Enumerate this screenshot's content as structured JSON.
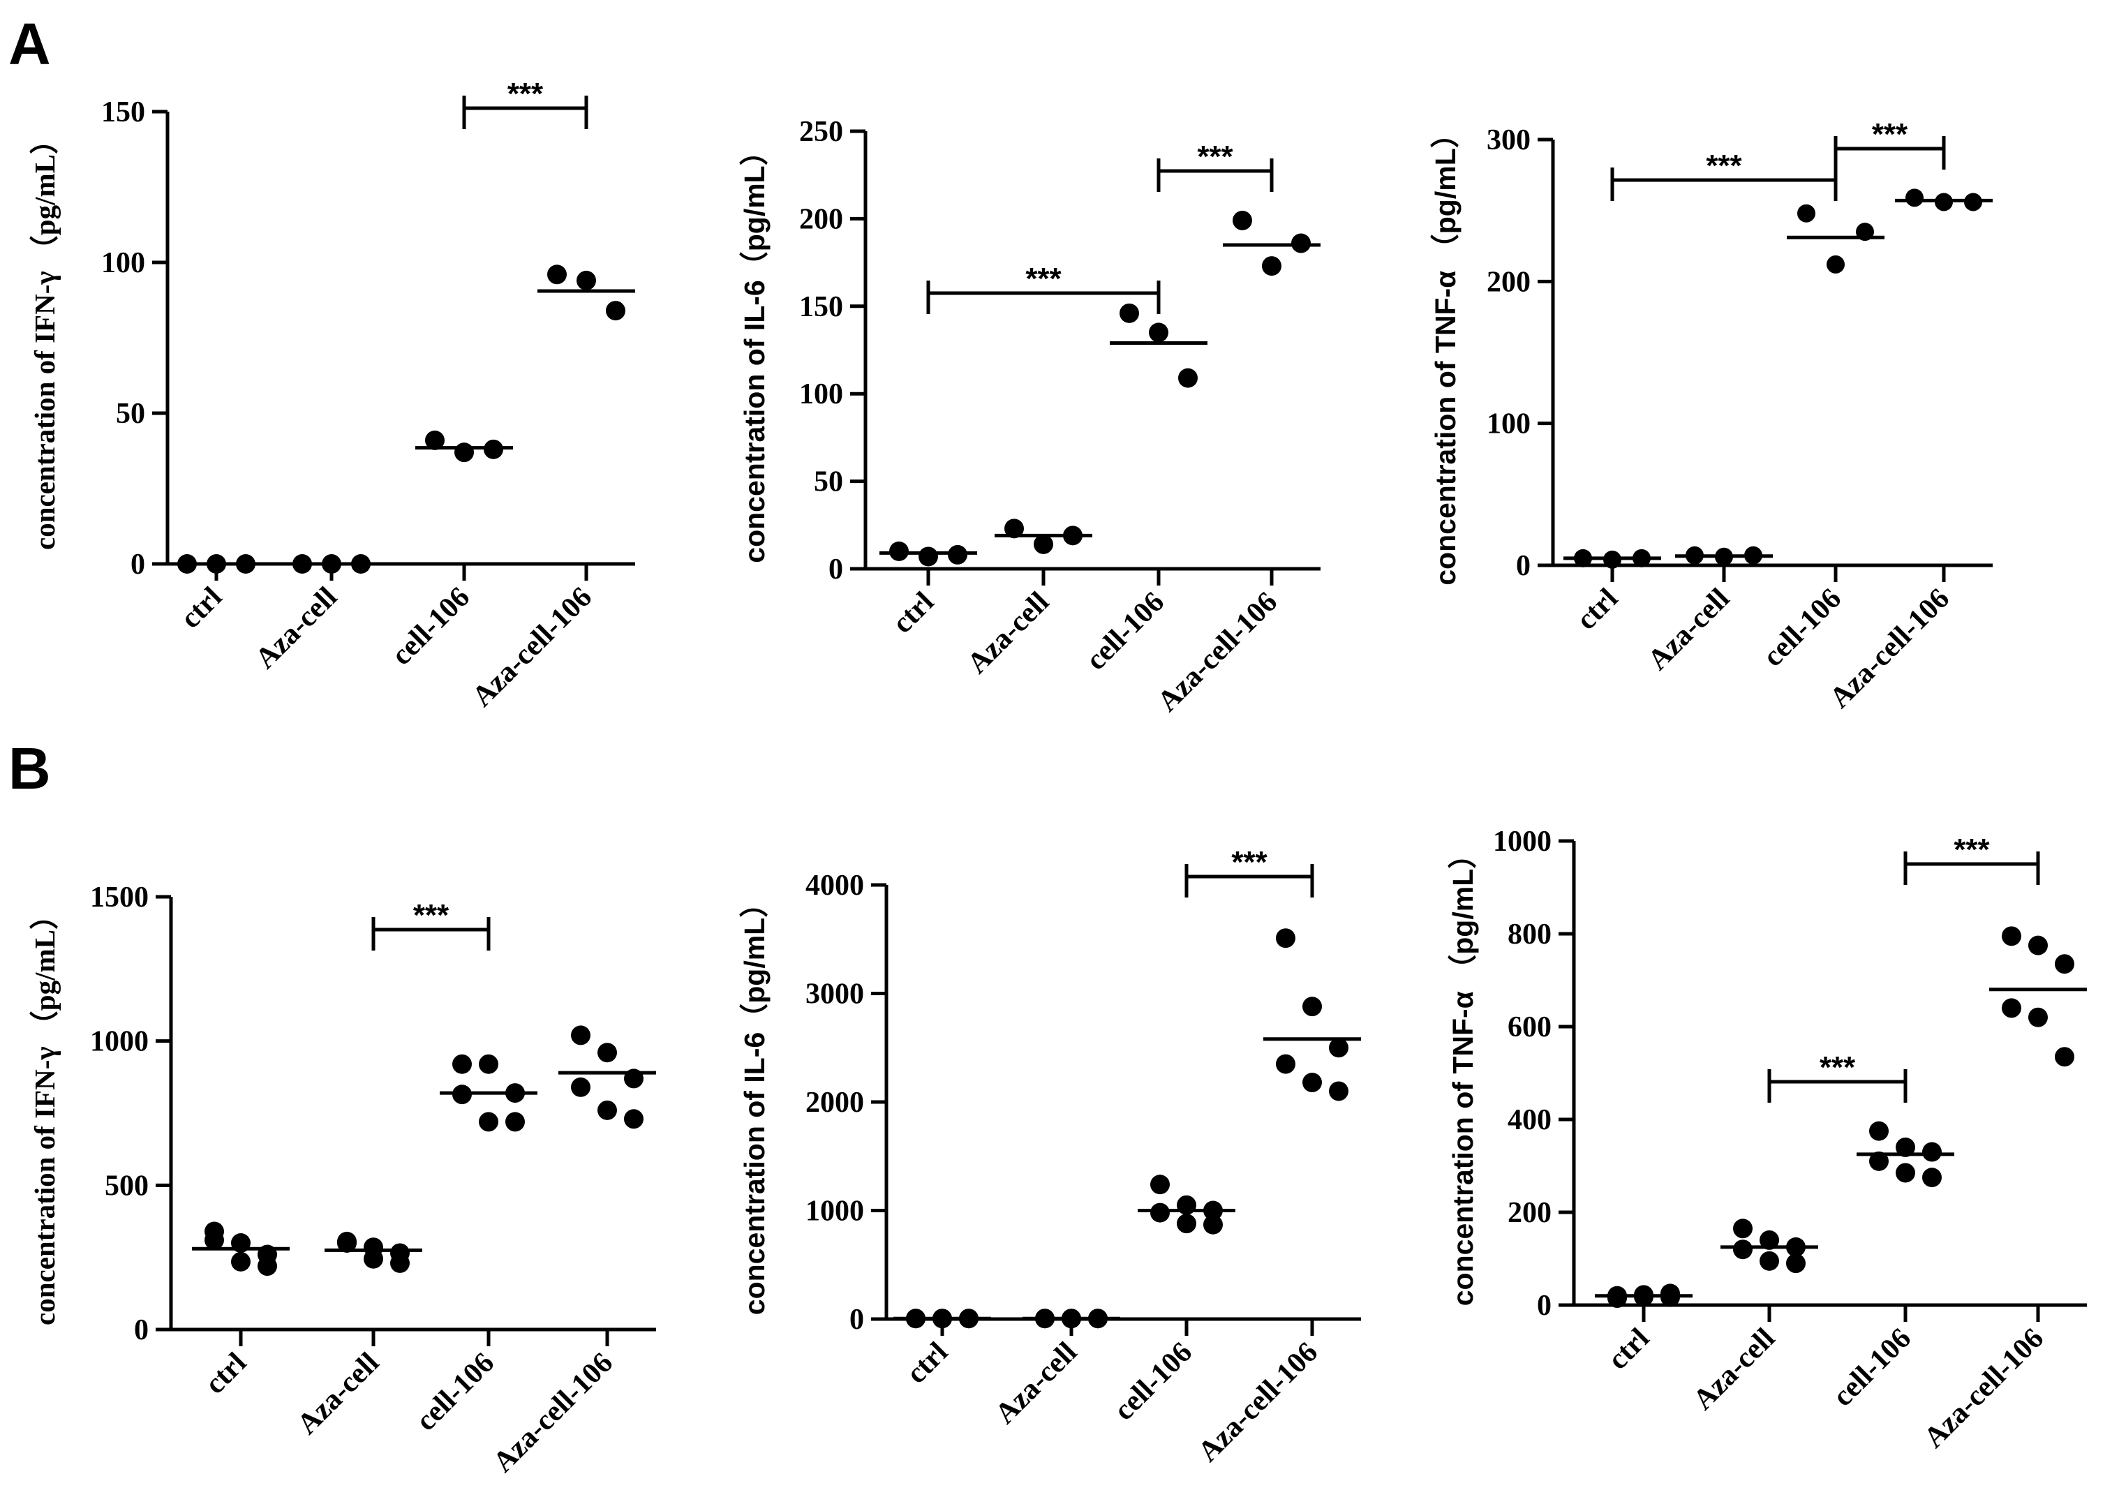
{
  "panel_labels": [
    "A",
    "B"
  ],
  "chart_data": [
    {
      "panel": "A",
      "type": "scatter",
      "title": "",
      "ylabel": "concentration of IFN-γ  （pg/mL）",
      "ylim": [
        0,
        150
      ],
      "yticks": [
        0,
        50,
        100,
        150
      ],
      "categories": [
        "ctrl",
        "Aza-cell",
        "cell-106",
        "Aza-cell-106"
      ],
      "points": [
        [
          0,
          0,
          0
        ],
        [
          0,
          0,
          0
        ],
        [
          41,
          37,
          38
        ],
        [
          96,
          94,
          84
        ]
      ],
      "means": [
        0,
        0,
        38.5,
        90.5
      ],
      "significance": [
        {
          "from": 2,
          "to": 3,
          "label": "***"
        }
      ]
    },
    {
      "panel": "A",
      "type": "scatter",
      "title": "",
      "ylabel": "concentration of IL-6（pg/mL）",
      "ylim": [
        0,
        250
      ],
      "yticks": [
        0,
        50,
        100,
        150,
        200,
        250
      ],
      "categories": [
        "ctrl",
        "Aza-cell",
        "cell-106",
        "Aza-cell-106"
      ],
      "points": [
        [
          10,
          7,
          8
        ],
        [
          23,
          14,
          19
        ],
        [
          146,
          135,
          109
        ],
        [
          199,
          173,
          186
        ]
      ],
      "means": [
        9,
        19,
        129,
        185
      ],
      "significance": [
        {
          "from": 0,
          "to": 2,
          "label": "***"
        },
        {
          "from": 2,
          "to": 3,
          "label": "***"
        }
      ]
    },
    {
      "panel": "A",
      "type": "scatter",
      "title": "",
      "ylabel": "concentration of TNF-α  （pg/mL）",
      "ylim": [
        0,
        300
      ],
      "yticks": [
        0,
        100,
        200,
        300
      ],
      "categories": [
        "ctrl",
        "Aza-cell",
        "cell-106",
        "Aza-cell-106"
      ],
      "points": [
        [
          5,
          4,
          5
        ],
        [
          7,
          6,
          7
        ],
        [
          248,
          212,
          235
        ],
        [
          259,
          256,
          256
        ]
      ],
      "means": [
        5,
        6.5,
        231,
        257
      ],
      "significance": [
        {
          "from": 0,
          "to": 2,
          "label": "***"
        },
        {
          "from": 2,
          "to": 3,
          "label": "***"
        }
      ]
    },
    {
      "panel": "B",
      "type": "scatter",
      "title": "",
      "ylabel": "concentration of IFN-γ  （pg/mL）",
      "ylim": [
        0,
        1500
      ],
      "yticks": [
        0,
        500,
        1000,
        1500
      ],
      "categories": [
        "ctrl",
        "Aza-cell",
        "cell-106",
        "Aza-cell-106"
      ],
      "points": [
        [
          340,
          300,
          260,
          310,
          235,
          220
        ],
        [
          305,
          285,
          265,
          300,
          245,
          230
        ],
        [
          920,
          920,
          820,
          815,
          720,
          720
        ],
        [
          1020,
          960,
          870,
          840,
          760,
          730
        ]
      ],
      "means": [
        280,
        275,
        820,
        890
      ],
      "significance": [
        {
          "from": 1,
          "to": 2,
          "label": "***"
        }
      ]
    },
    {
      "panel": "B",
      "type": "scatter",
      "title": "",
      "ylabel": "concentration of IL-6（pg/mL）",
      "ylim": [
        0,
        4000
      ],
      "yticks": [
        0,
        1000,
        2000,
        3000,
        4000
      ],
      "categories": [
        "ctrl",
        "Aza-cell",
        "cell-106",
        "Aza-cell-106"
      ],
      "points": [
        [
          5,
          5,
          5,
          5,
          5,
          5
        ],
        [
          5,
          5,
          5,
          5,
          5,
          5
        ],
        [
          1240,
          1050,
          1000,
          980,
          880,
          870
        ],
        [
          3510,
          2880,
          2500,
          2350,
          2180,
          2100
        ]
      ],
      "means": [
        5,
        5,
        1000,
        2580
      ],
      "significance": [
        {
          "from": 2,
          "to": 3,
          "label": "***"
        }
      ]
    },
    {
      "panel": "B",
      "type": "scatter",
      "title": "",
      "ylabel": "concentration of TNF-α  （pg/mL）",
      "ylim": [
        0,
        1000
      ],
      "yticks": [
        0,
        200,
        400,
        600,
        800,
        1000
      ],
      "categories": [
        "ctrl",
        "Aza-cell",
        "cell-106",
        "Aza-cell-106"
      ],
      "points": [
        [
          20,
          18,
          25,
          15,
          22,
          17
        ],
        [
          165,
          140,
          125,
          120,
          95,
          90
        ],
        [
          375,
          340,
          330,
          310,
          285,
          275
        ],
        [
          795,
          775,
          735,
          640,
          620,
          535
        ]
      ],
      "means": [
        20,
        125,
        325,
        680
      ],
      "significance": [
        {
          "from": 1,
          "to": 2,
          "label": "***"
        },
        {
          "from": 2,
          "to": 3,
          "label": "***"
        }
      ]
    }
  ]
}
